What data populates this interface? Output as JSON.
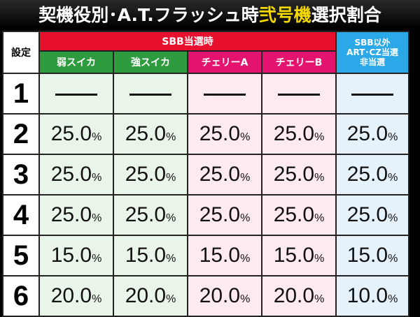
{
  "title": {
    "part1": "契機役別･A.T.フラッシュ時",
    "part2": "弐号機",
    "part3": "選択割合"
  },
  "colors": {
    "title_accent": "#f5d800",
    "sbb_header": "#e8112d",
    "other_header": "#2ba8e8",
    "green_sub": "#2e9b3e",
    "pink_sub": "#e4136f"
  },
  "header": {
    "setting": "設定",
    "group_sbb": "SBB当選時",
    "group_other_line1": "SBB以外",
    "group_other_line2": "ART･CZ当選",
    "group_other_line3": "非当選",
    "sub": [
      "弱スイカ",
      "強スイカ",
      "チェリーA",
      "チェリーB"
    ]
  },
  "rows": [
    {
      "setting": "1",
      "values": [
        "",
        "",
        "",
        "",
        ""
      ]
    },
    {
      "setting": "2",
      "values": [
        "25.0",
        "25.0",
        "25.0",
        "25.0",
        "25.0"
      ]
    },
    {
      "setting": "3",
      "values": [
        "25.0",
        "25.0",
        "25.0",
        "25.0",
        "25.0"
      ]
    },
    {
      "setting": "4",
      "values": [
        "25.0",
        "25.0",
        "25.0",
        "25.0",
        "25.0"
      ]
    },
    {
      "setting": "5",
      "values": [
        "15.0",
        "15.0",
        "15.0",
        "15.0",
        "15.0"
      ]
    },
    {
      "setting": "6",
      "values": [
        "20.0",
        "20.0",
        "20.0",
        "20.0",
        "10.0"
      ]
    }
  ],
  "unit": "%"
}
